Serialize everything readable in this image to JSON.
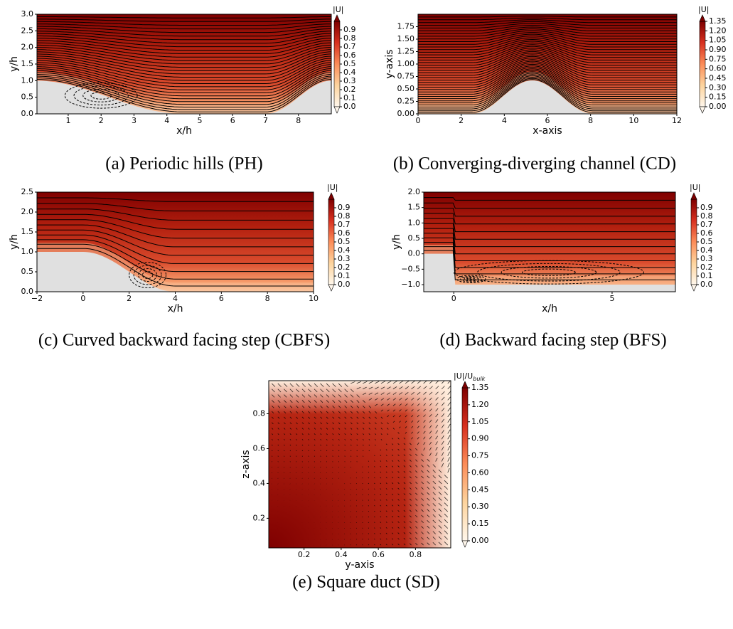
{
  "chart_data": [
    {
      "type": "contour",
      "caption": "(a) Periodic hills (PH)",
      "xlabel": "x/h",
      "ylabel": "y/h",
      "xlim": [
        0.05,
        9.0
      ],
      "ylim": [
        0,
        3.0
      ],
      "xticks": [
        1,
        2,
        3,
        4,
        5,
        6,
        7,
        8
      ],
      "yticks": [
        {
          "value": 0,
          "label": "0.0"
        },
        0.5,
        {
          "value": 1,
          "label": "1.0"
        },
        1.5,
        {
          "value": 2,
          "label": "2.0"
        },
        2.5,
        {
          "value": 3,
          "label": "3.0"
        }
      ],
      "colorbar": {
        "label": "|U|",
        "lim": [
          0,
          1.0
        ],
        "ticks": [
          {
            "value": 0,
            "label": "0.0"
          },
          0.1,
          0.2,
          0.3,
          0.4,
          0.5,
          0.6,
          0.7,
          0.8,
          0.9
        ]
      }
    },
    {
      "type": "contour",
      "caption": "(b) Converging-diverging channel (CD)",
      "xlabel": "x-axis",
      "ylabel": "y-axis",
      "xlim": [
        0,
        12
      ],
      "ylim": [
        0,
        2.0
      ],
      "xticks": [
        0,
        2,
        4,
        6,
        8,
        10,
        12
      ],
      "yticks": [
        {
          "value": 0,
          "label": "0.00"
        },
        0.25,
        {
          "value": 0.5,
          "label": "0.50"
        },
        0.75,
        {
          "value": 1,
          "label": "1.00"
        },
        1.25,
        {
          "value": 1.5,
          "label": "1.50"
        },
        1.75
      ],
      "colorbar": {
        "label": "|U|",
        "lim": [
          0,
          1.35
        ],
        "ticks": [
          {
            "value": 0,
            "label": "0.00"
          },
          0.15,
          {
            "value": 0.3,
            "label": "0.30"
          },
          0.45,
          {
            "value": 0.6,
            "label": "0.60"
          },
          0.75,
          {
            "value": 0.9,
            "label": "0.90"
          },
          1.05,
          {
            "value": 1.2,
            "label": "1.20"
          },
          1.35
        ]
      }
    },
    {
      "type": "contour",
      "caption": "(c) Curved backward facing step (CBFS)",
      "xlabel": "x/h",
      "ylabel": "y/h",
      "xlim": [
        -2,
        10
      ],
      "ylim": [
        0,
        2.5
      ],
      "xticks": [
        {
          "value": -2,
          "label": "−2"
        },
        0,
        2,
        4,
        6,
        8,
        10
      ],
      "yticks": [
        {
          "value": 0,
          "label": "0.0"
        },
        0.5,
        {
          "value": 1,
          "label": "1.0"
        },
        1.5,
        {
          "value": 2,
          "label": "2.0"
        },
        2.5
      ],
      "colorbar": {
        "label": "|U|",
        "lim": [
          0,
          1.0
        ],
        "ticks": [
          {
            "value": 0,
            "label": "0.0"
          },
          0.1,
          0.2,
          0.3,
          0.4,
          0.5,
          0.6,
          0.7,
          0.8,
          0.9
        ]
      }
    },
    {
      "type": "contour",
      "caption": "(d) Backward facing step (BFS)",
      "xlabel": "x/h",
      "ylabel": "y/h",
      "xlim": [
        -0.95,
        7.0
      ],
      "ylim": [
        -1.23,
        2.0
      ],
      "xticks": [
        0,
        5
      ],
      "yticks": [
        {
          "value": -1,
          "label": "−1.0"
        },
        {
          "value": -0.5,
          "label": "−0.5"
        },
        {
          "value": 0,
          "label": "0.0"
        },
        0.5,
        {
          "value": 1,
          "label": "1.0"
        },
        1.5,
        {
          "value": 2,
          "label": "2.0"
        }
      ],
      "colorbar": {
        "label": "|U|",
        "lim": [
          0,
          1.0
        ],
        "ticks": [
          {
            "value": 0,
            "label": "0.0"
          },
          0.1,
          0.2,
          0.3,
          0.4,
          0.5,
          0.6,
          0.7,
          0.8,
          0.9
        ]
      }
    },
    {
      "type": "quiver",
      "caption": "(e) Square duct (SD)",
      "xlabel": "y-axis",
      "ylabel": "z-axis",
      "xlim": [
        0.01,
        0.99
      ],
      "ylim": [
        0.03,
        0.99
      ],
      "xticks": [
        0.2,
        0.4,
        0.6,
        0.8
      ],
      "yticks": [
        0.2,
        0.4,
        0.6,
        0.8
      ],
      "colorbar": {
        "label": "|U|/U",
        "label_sub": "bulk",
        "lim": [
          0,
          1.35
        ],
        "ticks": [
          {
            "value": 0,
            "label": "0.00"
          },
          0.15,
          {
            "value": 0.3,
            "label": "0.30"
          },
          0.45,
          {
            "value": 0.6,
            "label": "0.60"
          },
          0.75,
          {
            "value": 0.9,
            "label": "0.90"
          },
          1.05,
          {
            "value": 1.2,
            "label": "1.20"
          },
          1.35
        ]
      }
    }
  ]
}
